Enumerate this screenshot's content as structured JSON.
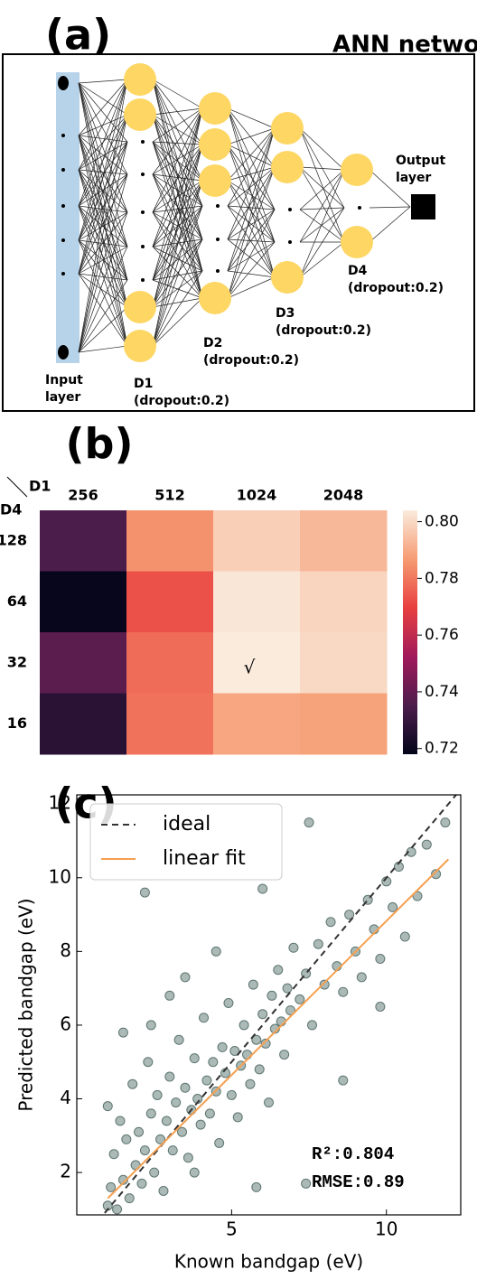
{
  "diagram": {
    "label": "(a)",
    "title": "ANN network",
    "layers": [
      {
        "name": [
          "Input",
          "layer"
        ]
      },
      {
        "name": [
          "D1"
        ],
        "note": "(dropout:0.2)"
      },
      {
        "name": [
          "D2"
        ],
        "note": "(dropout:0.2)"
      },
      {
        "name": [
          "D3"
        ],
        "note": "(dropout:0.2)"
      },
      {
        "name": [
          "D4"
        ],
        "note": "(dropout:0.2)"
      },
      {
        "name": [
          "Output",
          "layer"
        ]
      }
    ]
  },
  "chart_data": [
    {
      "type": "heatmap",
      "label": "(b)",
      "xlabel": "D1",
      "ylabel": "D4",
      "categories": [
        "256",
        "512",
        "1024",
        "2048"
      ],
      "rows": [
        "128",
        "64",
        "32",
        "16"
      ],
      "values": [
        [
          0.735,
          0.785,
          0.798,
          0.793
        ],
        [
          0.719,
          0.773,
          0.803,
          0.799
        ],
        [
          0.738,
          0.778,
          0.804,
          0.8
        ],
        [
          0.727,
          0.779,
          0.789,
          0.788
        ]
      ],
      "colormap": "rocket",
      "ylim": [
        0.718,
        0.804
      ],
      "yticks": [
        0.72,
        0.74,
        0.76,
        0.78,
        {
          "value": 0.8,
          "label": "0.80"
        }
      ],
      "annotation": {
        "text": "√",
        "x": "1024",
        "y": "32"
      }
    },
    {
      "type": "scatter",
      "label": "(c)",
      "xlabel": "Known bandgap (eV)",
      "ylabel": "Predicted bandgap (eV)",
      "xlim": [
        0,
        12.4
      ],
      "ylim": [
        0.85,
        12.25
      ],
      "xticks": [
        5,
        10
      ],
      "yticks": [
        2,
        4,
        6,
        8,
        10,
        12
      ],
      "color": "#8fa39f",
      "legend": "upper left",
      "x": [
        1.0,
        1.1,
        1.2,
        1.3,
        1.4,
        1.5,
        1.6,
        1.7,
        1.8,
        1.9,
        2.0,
        2.1,
        2.2,
        2.3,
        2.4,
        2.5,
        2.6,
        2.7,
        2.8,
        2.9,
        3.0,
        3.1,
        3.2,
        3.3,
        3.4,
        3.5,
        3.6,
        3.7,
        3.8,
        3.9,
        4.0,
        4.1,
        4.2,
        4.3,
        4.4,
        4.5,
        4.6,
        4.7,
        4.8,
        4.9,
        5.0,
        5.1,
        5.2,
        5.3,
        5.4,
        5.5,
        5.6,
        5.7,
        5.8,
        5.9,
        6.0,
        6.1,
        6.2,
        6.3,
        6.4,
        6.5,
        6.6,
        6.7,
        6.8,
        6.9,
        7.0,
        7.2,
        7.4,
        7.6,
        7.8,
        8.0,
        8.2,
        8.4,
        8.6,
        8.8,
        9.0,
        9.2,
        9.4,
        9.6,
        9.8,
        10.0,
        10.2,
        10.4,
        10.6,
        10.8,
        11.0,
        11.3,
        11.6,
        11.9,
        7.5,
        2.2,
        3.5,
        1.5,
        5.8,
        7.4,
        3.0,
        4.5,
        6.0,
        8.6,
        1.0,
        2.4,
        3.8,
        9.8
      ],
      "y": [
        1.1,
        1.6,
        2.5,
        1.0,
        3.4,
        1.8,
        2.9,
        1.3,
        4.4,
        2.2,
        3.1,
        1.7,
        2.6,
        5.0,
        3.6,
        2.0,
        4.1,
        2.9,
        1.5,
        3.4,
        4.6,
        2.6,
        3.9,
        5.6,
        3.1,
        4.3,
        2.4,
        3.7,
        5.1,
        4.0,
        3.3,
        6.2,
        4.5,
        3.6,
        5.0,
        4.2,
        2.8,
        5.4,
        4.7,
        6.6,
        4.1,
        5.3,
        3.5,
        4.9,
        6.0,
        5.2,
        4.4,
        7.1,
        5.6,
        4.8,
        6.3,
        5.5,
        3.9,
        6.8,
        5.9,
        7.5,
        6.1,
        5.2,
        7.0,
        6.4,
        8.1,
        6.7,
        7.4,
        6.0,
        8.2,
        7.1,
        8.8,
        7.6,
        6.9,
        9.0,
        8.0,
        7.3,
        9.4,
        8.6,
        7.8,
        9.9,
        9.2,
        10.3,
        8.4,
        10.7,
        9.5,
        10.9,
        10.1,
        11.5,
        11.5,
        9.6,
        7.3,
        5.8,
        1.6,
        1.7,
        6.8,
        8.0,
        9.7,
        4.5,
        3.8,
        6.0,
        2.0,
        6.5
      ],
      "lines": [
        {
          "name": "ideal",
          "color": "#333333",
          "dash": true,
          "x": [
            0,
            12.4
          ],
          "y": [
            0,
            12.4
          ]
        },
        {
          "name": "linear fit",
          "color": "#f5a050",
          "dash": false,
          "x": [
            1,
            12
          ],
          "y": [
            1.3,
            10.5
          ]
        }
      ],
      "annotations": [
        "R²:0.804",
        "RMSE:0.89"
      ]
    }
  ]
}
